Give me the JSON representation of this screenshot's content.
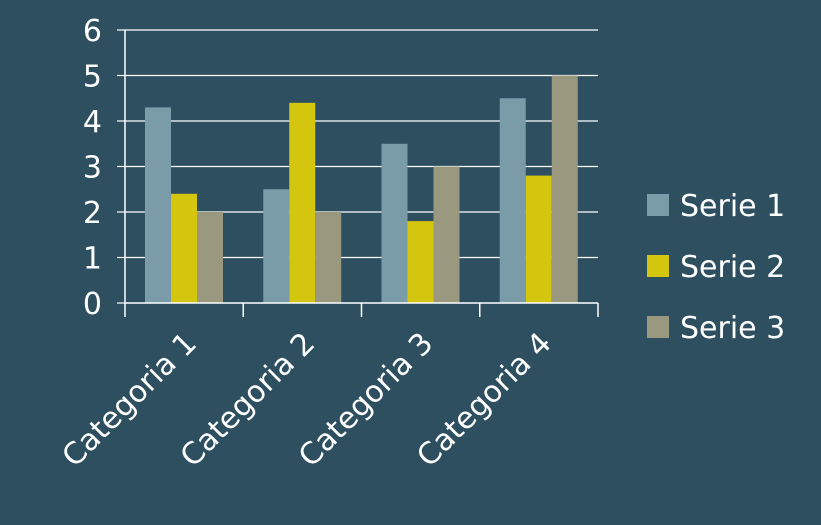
{
  "chart_data": {
    "type": "bar",
    "categories": [
      "Categoria 1",
      "Categoria 2",
      "Categoria 3",
      "Categoria 4"
    ],
    "series": [
      {
        "name": "Serie 1",
        "values": [
          4.3,
          2.5,
          3.5,
          4.5
        ],
        "color": "#7a9ca8"
      },
      {
        "name": "Serie 2",
        "values": [
          2.4,
          4.4,
          1.8,
          2.8
        ],
        "color": "#d4c60f"
      },
      {
        "name": "Serie 3",
        "values": [
          2,
          2,
          3,
          5
        ],
        "color": "#9b9880"
      }
    ],
    "yticks": [
      "0",
      "1",
      "2",
      "3",
      "4",
      "5",
      "6"
    ],
    "ylim": [
      0,
      6
    ],
    "grid": true,
    "legend": "right",
    "background": "#2d4f60",
    "axis_color": "#ffffff"
  }
}
